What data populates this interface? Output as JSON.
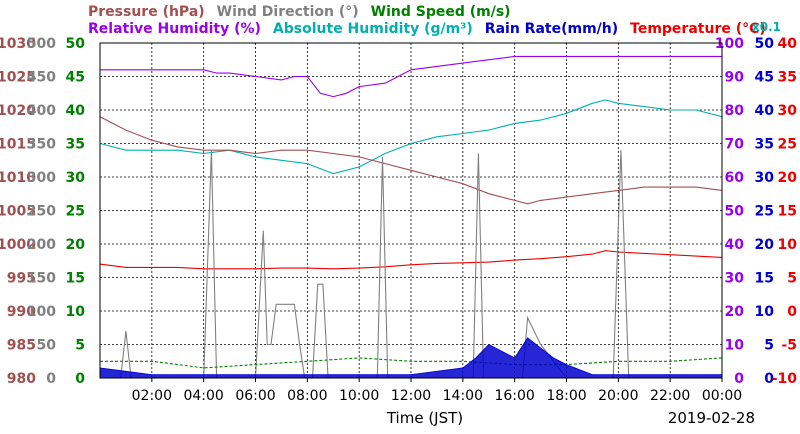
{
  "chart_data": {
    "type": "line",
    "title_lines": [
      [
        {
          "id": "pressure",
          "text": "Pressure (hPa)",
          "color": "#a05050"
        },
        {
          "id": "wind_dir",
          "text": "Wind Direction (°)",
          "color": "#808080"
        },
        {
          "id": "wind_speed",
          "text": "Wind Speed (m/s)",
          "color": "#008000"
        }
      ],
      [
        {
          "id": "rel_hum",
          "text": "Relative Humidity (%)",
          "color": "#9900ee"
        },
        {
          "id": "abs_hum",
          "text": "Absolute Humidity (g/m³)",
          "color": "#00b0b0"
        },
        {
          "id": "rain",
          "text": "Rain Rate(mm/h)",
          "color": "#0000cc"
        },
        {
          "id": "temp",
          "text": "Temperature (°C)",
          "color": "#ee0000"
        }
      ]
    ],
    "abs_hum_scale_label": "x0.1",
    "xlabel": "Time (JST)",
    "date": "2019-02-28",
    "x_ticks": [
      "02:00",
      "04:00",
      "06:00",
      "08:00",
      "10:00",
      "12:00",
      "14:00",
      "16:00",
      "18:00",
      "20:00",
      "22:00",
      "00:00"
    ],
    "x_range_hours": [
      0,
      24
    ],
    "grid": true,
    "left_axes": [
      {
        "id": "pressure",
        "color": "#a05050",
        "range": [
          980,
          1030
        ],
        "ticks": [
          "980",
          "985",
          "990",
          "995",
          "1000",
          "1005",
          "1010",
          "1015",
          "1020",
          "1025",
          "1030"
        ]
      },
      {
        "id": "wind_dir",
        "color": "#808080",
        "range": [
          0,
          500
        ],
        "ticks": [
          "0",
          "50",
          "100",
          "150",
          "200",
          "250",
          "300",
          "350",
          "400",
          "450",
          "500"
        ]
      },
      {
        "id": "wind_speed",
        "color": "#008000",
        "range": [
          0,
          50
        ],
        "ticks": [
          "0",
          "5",
          "10",
          "15",
          "20",
          "25",
          "30",
          "35",
          "40",
          "45",
          "50"
        ]
      }
    ],
    "right_axes": [
      {
        "id": "rel_hum",
        "color": "#9900ee",
        "range": [
          0,
          100
        ],
        "ticks": [
          "0",
          "10",
          "20",
          "30",
          "40",
          "50",
          "60",
          "70",
          "80",
          "90",
          "100"
        ]
      },
      {
        "id": "rain",
        "color": "#0000cc",
        "range": [
          0,
          50
        ],
        "ticks": [
          "0",
          "5",
          "10",
          "15",
          "20",
          "25",
          "30",
          "35",
          "40",
          "45",
          "50"
        ]
      },
      {
        "id": "temp",
        "color": "#ee0000",
        "range": [
          -10,
          40
        ],
        "ticks": [
          "-10",
          "-5",
          "0",
          "5",
          "10",
          "15",
          "20",
          "25",
          "30",
          "35",
          "40"
        ]
      }
    ],
    "series": [
      {
        "name": "Relative Humidity (%)",
        "axis": "rel_hum",
        "color": "#9900ee",
        "x": [
          0,
          2,
          3,
          4,
          4.5,
          5,
          6,
          7,
          7.5,
          8,
          8.5,
          9,
          9.5,
          10,
          11,
          12,
          14,
          16,
          18,
          20,
          22,
          24
        ],
        "y": [
          92,
          92,
          92,
          92,
          91,
          91,
          90,
          89,
          90,
          90,
          85,
          84,
          85,
          87,
          88,
          92,
          94,
          96,
          96,
          96,
          96,
          96
        ]
      },
      {
        "name": "Absolute Humidity (g/m³)",
        "axis": "rel_hum",
        "color": "#00b0b0",
        "x": [
          0,
          1,
          2,
          3,
          4,
          5,
          6,
          7,
          8,
          9,
          10,
          11,
          12,
          13,
          14,
          15,
          16,
          17,
          18,
          19,
          19.5,
          20,
          21,
          22,
          23,
          24
        ],
        "y": [
          70,
          68,
          68,
          68,
          67,
          68,
          66,
          65,
          64,
          61,
          63,
          67,
          70,
          72,
          73,
          74,
          76,
          77,
          79,
          82,
          83,
          82,
          81,
          80,
          80,
          78
        ]
      },
      {
        "name": "Pressure (hPa)",
        "axis": "pressure",
        "color": "#a05050",
        "x": [
          0,
          1,
          2,
          3,
          4,
          5,
          6,
          7,
          8,
          9,
          10,
          11,
          12,
          13,
          14,
          15,
          16,
          16.5,
          17,
          18,
          19,
          20,
          21,
          22,
          23,
          24
        ],
        "y": [
          1019,
          1017,
          1015.5,
          1014.5,
          1014,
          1014,
          1013.5,
          1014,
          1014,
          1013.5,
          1013,
          1012,
          1011,
          1010,
          1009,
          1007.5,
          1006.5,
          1006,
          1006.5,
          1007,
          1007.5,
          1008,
          1008.5,
          1008.5,
          1008.5,
          1008
        ]
      },
      {
        "name": "Temperature (°C)",
        "axis": "temp",
        "color": "#ee0000",
        "x": [
          0,
          1,
          2,
          3,
          4,
          5,
          6,
          7,
          8,
          9,
          10,
          11,
          12,
          13,
          14,
          15,
          16,
          17,
          18,
          19,
          19.5,
          20,
          21,
          22,
          23,
          24
        ],
        "y": [
          7,
          6.5,
          6.5,
          6.5,
          6.3,
          6.3,
          6.3,
          6.4,
          6.4,
          6.3,
          6.4,
          6.6,
          6.9,
          7.1,
          7.2,
          7.3,
          7.6,
          7.8,
          8.1,
          8.5,
          9,
          8.8,
          8.6,
          8.4,
          8.2,
          8
        ]
      },
      {
        "name": "Wind Direction (°)",
        "axis": "wind_dir",
        "color": "#808080",
        "x": [
          0,
          0.8,
          1,
          1.2,
          2,
          3,
          4,
          4.3,
          4.5,
          4.7,
          5,
          5.5,
          6,
          6.3,
          6.45,
          6.6,
          6.8,
          7,
          7.5,
          7.7,
          7.9,
          8.2,
          8.4,
          8.6,
          8.8,
          9,
          10,
          10.7,
          10.9,
          11.1,
          12,
          13,
          14,
          14.4,
          14.6,
          14.8,
          15,
          15.5,
          16,
          16.3,
          16.5,
          17,
          18,
          19,
          19.8,
          20.1,
          20.4,
          21,
          22,
          23,
          24
        ],
        "y": [
          0,
          0,
          70,
          0,
          0,
          0,
          0,
          340,
          0,
          0,
          0,
          0,
          0,
          220,
          50,
          50,
          110,
          110,
          110,
          50,
          0,
          0,
          140,
          140,
          0,
          0,
          0,
          0,
          330,
          0,
          0,
          0,
          0,
          0,
          335,
          0,
          0,
          0,
          0,
          0,
          90,
          50,
          0,
          0,
          0,
          340,
          0,
          0,
          0,
          0,
          0
        ]
      },
      {
        "name": "Wind Speed (m/s)",
        "axis": "wind_speed",
        "color": "#008000",
        "x": [
          0,
          2,
          4,
          6,
          8,
          10,
          12,
          14,
          16,
          18,
          20,
          22,
          24
        ],
        "y": [
          2.5,
          2.5,
          1.5,
          2,
          2.5,
          3,
          2.5,
          2.5,
          2,
          2,
          2.5,
          2.5,
          3
        ]
      },
      {
        "name": "Rain Rate(mm/h)",
        "axis": "rain",
        "color": "#0000cc",
        "kind": "area",
        "x": [
          0,
          1,
          2,
          4,
          6,
          8,
          10,
          12,
          14,
          14.5,
          15,
          15.5,
          16,
          16.5,
          17,
          17.5,
          18,
          19,
          20,
          21,
          22,
          24
        ],
        "y": [
          1.5,
          1,
          0.5,
          0.5,
          0.5,
          0.5,
          0.5,
          0.5,
          1.5,
          3,
          5,
          4,
          3,
          6,
          4.5,
          3,
          2,
          0.5,
          0.5,
          0.5,
          0.5,
          0.5
        ]
      }
    ]
  }
}
